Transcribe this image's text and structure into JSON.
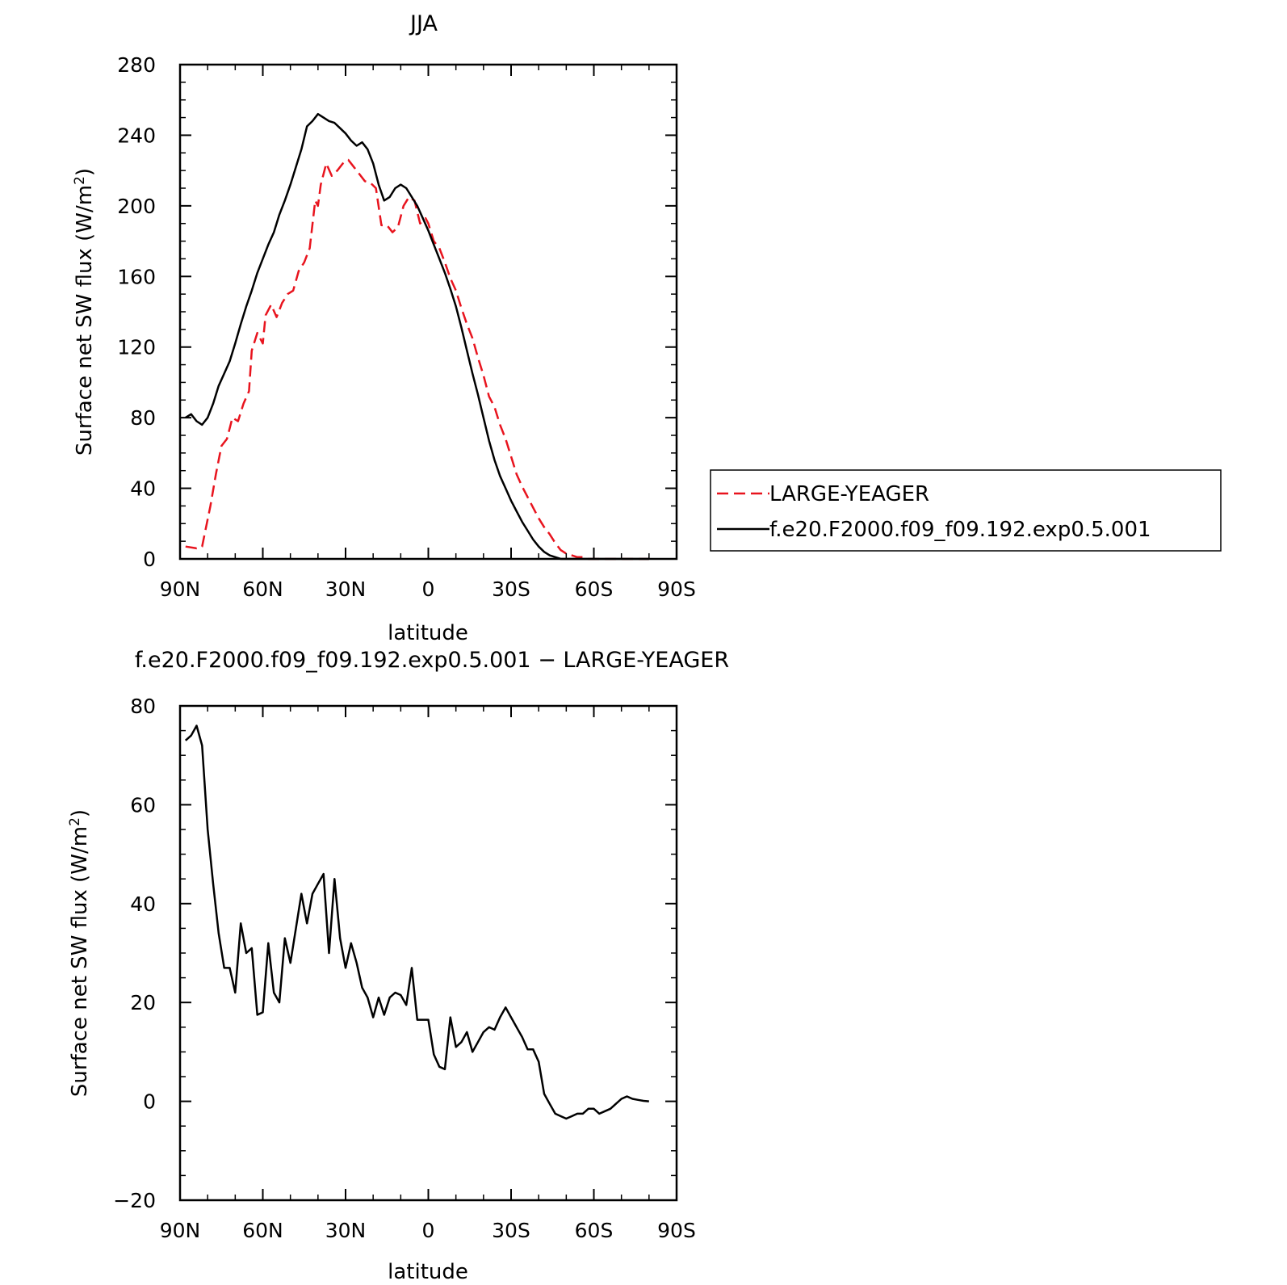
{
  "chart_data": [
    {
      "type": "line",
      "title": "JJA",
      "xlabel": "latitude",
      "ylabel": "Surface net SW flux (W/m",
      "ylabel_sup": "2",
      "ylabel_close": ")",
      "xlim": [
        90,
        -90
      ],
      "ylim": [
        0,
        280
      ],
      "x_ticks": [
        90,
        60,
        30,
        0,
        -30,
        -60,
        -90
      ],
      "x_tick_labels": [
        "90N",
        "60N",
        "30N",
        "0",
        "30S",
        "60S",
        "90S"
      ],
      "y_ticks": [
        0,
        40,
        80,
        120,
        160,
        200,
        240,
        280
      ],
      "y_tick_labels": [
        "0",
        "40",
        "80",
        "120",
        "160",
        "200",
        "240",
        "280"
      ],
      "legend_position": "right",
      "series": [
        {
          "name": "LARGE-YEAGER",
          "color": "#e8141e",
          "dash": "dashed",
          "x": [
            88,
            84,
            82,
            79,
            77,
            75,
            73,
            71,
            69,
            67,
            65,
            64,
            62,
            60,
            59,
            57,
            55,
            53,
            51,
            49,
            47,
            45,
            43,
            41,
            40,
            39,
            37,
            35,
            33,
            31,
            29,
            27,
            25,
            23,
            21,
            19,
            17,
            15,
            13,
            11,
            9,
            7,
            5,
            3,
            1,
            0,
            -2,
            -4,
            -6,
            -8,
            -10,
            -12,
            -14,
            -16,
            -18,
            -20,
            -22,
            -24,
            -26,
            -28,
            -30,
            -32,
            -34,
            -36,
            -38,
            -40,
            -42,
            -44,
            -46,
            -48,
            -50,
            -52,
            -54,
            -56,
            -58,
            -60,
            -62,
            -64,
            -66,
            -68,
            -70,
            -72,
            -74,
            -76,
            -78,
            -80
          ],
          "values": [
            7,
            6,
            7,
            30,
            48,
            64,
            68,
            80,
            78,
            88,
            95,
            118,
            128,
            122,
            138,
            144,
            137,
            145,
            150,
            152,
            163,
            168,
            176,
            203,
            200,
            212,
            224,
            217,
            220,
            224,
            226,
            222,
            218,
            214,
            213,
            210,
            189,
            189,
            185,
            188,
            200,
            205,
            203,
            190,
            193,
            190,
            180,
            176,
            168,
            159,
            152,
            142,
            133,
            125,
            114,
            104,
            92,
            86,
            76,
            68,
            58,
            48,
            41,
            35,
            29,
            23,
            18,
            14,
            9,
            5,
            3,
            2,
            1,
            1,
            0,
            0,
            0,
            0,
            0,
            0,
            0,
            0,
            0,
            0,
            0,
            0
          ]
        },
        {
          "name": "f.e20.F2000.f09_f09.192.exp0.5.001",
          "color": "#000000",
          "dash": "solid",
          "x": [
            88,
            86,
            84,
            82,
            80,
            78,
            76,
            74,
            72,
            70,
            68,
            66,
            64,
            62,
            60,
            58,
            56,
            54,
            52,
            50,
            48,
            46,
            44,
            42,
            40,
            38,
            36,
            34,
            32,
            30,
            28,
            26,
            24,
            22,
            20,
            18,
            16,
            14,
            12,
            10,
            8,
            6,
            4,
            2,
            0,
            -2,
            -4,
            -6,
            -8,
            -10,
            -12,
            -14,
            -16,
            -18,
            -20,
            -22,
            -24,
            -26,
            -28,
            -30,
            -32,
            -34,
            -36,
            -38,
            -40,
            -42,
            -44,
            -46,
            -48,
            -50,
            -52,
            -54,
            -56,
            -58,
            -60,
            -62,
            -64,
            -66,
            -68,
            -70,
            -72,
            -74,
            -76,
            -78,
            -80
          ],
          "values": [
            80,
            82,
            78,
            76,
            80,
            88,
            98,
            105,
            112,
            122,
            133,
            143,
            152,
            162,
            170,
            178,
            185,
            195,
            203,
            212,
            222,
            232,
            245,
            248,
            252,
            250,
            248,
            247,
            244,
            241,
            237,
            234,
            236,
            232,
            224,
            212,
            203,
            205,
            210,
            212,
            210,
            205,
            200,
            193,
            186,
            178,
            170,
            162,
            153,
            143,
            131,
            118,
            105,
            93,
            80,
            67,
            56,
            47,
            40,
            33,
            27,
            21,
            16,
            11,
            7,
            4,
            2,
            1,
            0,
            0,
            0,
            0,
            0,
            0,
            0,
            0,
            0,
            0,
            0,
            0,
            0,
            0,
            0,
            0,
            0
          ]
        }
      ]
    },
    {
      "type": "line",
      "title": "f.e20.F2000.f09_f09.192.exp0.5.001 − LARGE-YEAGER",
      "xlabel": "latitude",
      "ylabel": "Surface net SW flux (W/m",
      "ylabel_sup": "2",
      "ylabel_close": ")",
      "xlim": [
        90,
        -90
      ],
      "ylim": [
        -20,
        80
      ],
      "x_ticks": [
        90,
        60,
        30,
        0,
        -30,
        -60,
        -90
      ],
      "x_tick_labels": [
        "90N",
        "60N",
        "30N",
        "0",
        "30S",
        "60S",
        "90S"
      ],
      "y_ticks": [
        -20,
        0,
        20,
        40,
        60,
        80
      ],
      "y_tick_labels": [
        "−20",
        "0",
        "20",
        "40",
        "60",
        "80"
      ],
      "series": [
        {
          "color": "#000000",
          "dash": "solid",
          "x": [
            88,
            86,
            84,
            82,
            80,
            78,
            76,
            74,
            72,
            70,
            68,
            66,
            64,
            62,
            60,
            58,
            56,
            54,
            52,
            50,
            48,
            46,
            44,
            42,
            40,
            38,
            36,
            34,
            32,
            30,
            28,
            26,
            24,
            22,
            20,
            18,
            16,
            14,
            12,
            10,
            8,
            6,
            4,
            2,
            0,
            -2,
            -4,
            -6,
            -8,
            -10,
            -12,
            -14,
            -16,
            -18,
            -20,
            -22,
            -24,
            -26,
            -28,
            -30,
            -32,
            -34,
            -36,
            -38,
            -40,
            -42,
            -44,
            -46,
            -48,
            -50,
            -52,
            -54,
            -56,
            -58,
            -60,
            -62,
            -64,
            -66,
            -68,
            -70,
            -72,
            -74,
            -76,
            -78,
            -80
          ],
          "values": [
            73,
            74,
            76,
            72,
            55,
            44,
            34,
            27,
            27,
            22,
            36,
            30,
            31,
            17.5,
            18,
            32,
            22,
            20,
            33,
            28,
            35,
            42,
            36,
            42,
            44,
            46,
            30,
            45,
            33,
            27,
            32,
            28,
            23,
            21,
            17,
            21,
            17.5,
            21,
            22,
            21.5,
            19.5,
            27,
            16.5,
            16.5,
            16.5,
            9.5,
            7,
            6.5,
            17,
            11,
            12,
            14,
            10,
            12,
            14,
            15,
            14.5,
            17,
            19,
            17,
            15,
            13,
            10.5,
            10.5,
            8,
            1.5,
            -0.5,
            -2.5,
            -3,
            -3.5,
            -3,
            -2.5,
            -2.5,
            -1.5,
            -1.5,
            -2.5,
            -2,
            -1.5,
            -0.5,
            0.5,
            1,
            0.5,
            0.3,
            0.1,
            0
          ]
        }
      ]
    }
  ],
  "legend": {
    "entries": [
      "LARGE-YEAGER",
      "f.e20.F2000.f09_f09.192.exp0.5.001"
    ]
  }
}
